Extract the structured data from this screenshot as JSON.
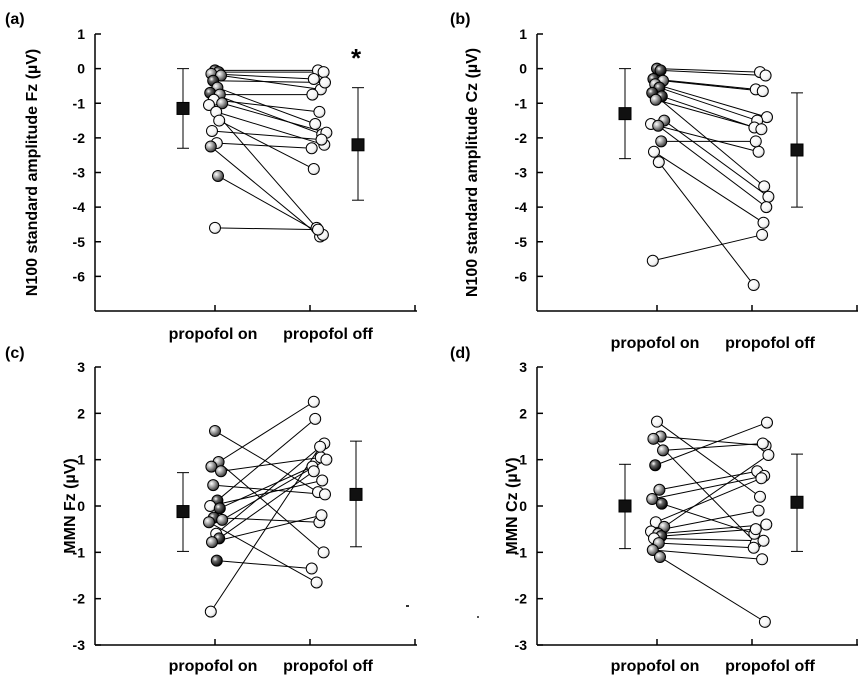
{
  "chart_data": [
    {
      "type": "scatter",
      "panel_label": "(a)",
      "ylabel": "N100 standard amplitude Fz (µV)",
      "ylim": [
        -7,
        1
      ],
      "yticks": [
        1,
        0,
        -1,
        -2,
        -3,
        -4,
        -5,
        -6
      ],
      "categories": [
        "propofol on",
        "propofol off"
      ],
      "significance": "*",
      "summary": {
        "on": {
          "mean": -1.15,
          "upper": 0.0,
          "lower": -2.3
        },
        "off": {
          "mean": -2.2,
          "upper": -0.55,
          "lower": -3.8
        }
      },
      "pairs": [
        {
          "on": -0.05,
          "off": -0.05,
          "shade": "dark"
        },
        {
          "on": -0.1,
          "off": -0.1,
          "shade": "dark"
        },
        {
          "on": -0.15,
          "off": -0.3,
          "shade": "mid"
        },
        {
          "on": -0.2,
          "off": -0.6,
          "shade": "mid"
        },
        {
          "on": -0.35,
          "off": -0.4,
          "shade": "dark"
        },
        {
          "on": -0.55,
          "off": -1.6,
          "shade": "mid"
        },
        {
          "on": -0.7,
          "off": -1.9,
          "shade": "dark"
        },
        {
          "on": -0.75,
          "off": -0.75,
          "shade": "mid"
        },
        {
          "on": -0.9,
          "off": -1.25,
          "shade": "light"
        },
        {
          "on": -1.0,
          "off": -1.85,
          "shade": "mid"
        },
        {
          "on": -1.05,
          "off": -4.6,
          "shade": "light"
        },
        {
          "on": -1.25,
          "off": -2.2,
          "shade": "light"
        },
        {
          "on": -1.5,
          "off": -2.9,
          "shade": "light"
        },
        {
          "on": -1.8,
          "off": -2.05,
          "shade": "light"
        },
        {
          "on": -2.15,
          "off": -2.3,
          "shade": "light"
        },
        {
          "on": -2.25,
          "off": -4.85,
          "shade": "mid"
        },
        {
          "on": -3.1,
          "off": -4.8,
          "shade": "mid"
        },
        {
          "on": -4.6,
          "off": -4.65,
          "shade": "light"
        }
      ]
    },
    {
      "type": "scatter",
      "panel_label": "(b)",
      "ylabel": "N100 standard amplitude Cz (µV)",
      "ylim": [
        -7,
        1
      ],
      "yticks": [
        1,
        0,
        -1,
        -2,
        -3,
        -4,
        -5,
        -6
      ],
      "categories": [
        "propofol on",
        "propofol off"
      ],
      "significance": "",
      "summary": {
        "on": {
          "mean": -1.3,
          "upper": 0.0,
          "lower": -2.6
        },
        "off": {
          "mean": -2.35,
          "upper": -0.7,
          "lower": -4.0
        }
      },
      "pairs": [
        {
          "on": 0.0,
          "off": -0.1,
          "shade": "dark"
        },
        {
          "on": -0.05,
          "off": -0.2,
          "shade": "dark"
        },
        {
          "on": -0.3,
          "off": -0.6,
          "shade": "dark"
        },
        {
          "on": -0.35,
          "off": -0.65,
          "shade": "mid"
        },
        {
          "on": -0.45,
          "off": -1.4,
          "shade": "mid"
        },
        {
          "on": -0.55,
          "off": -1.5,
          "shade": "dark"
        },
        {
          "on": -0.7,
          "off": -3.4,
          "shade": "dark"
        },
        {
          "on": -0.8,
          "off": -1.7,
          "shade": "dark"
        },
        {
          "on": -0.9,
          "off": -1.75,
          "shade": "mid"
        },
        {
          "on": -1.5,
          "off": -3.7,
          "shade": "mid"
        },
        {
          "on": -1.6,
          "off": -2.4,
          "shade": "light"
        },
        {
          "on": -1.65,
          "off": -4.0,
          "shade": "mid"
        },
        {
          "on": -2.1,
          "off": -2.1,
          "shade": "mid"
        },
        {
          "on": -2.4,
          "off": -4.45,
          "shade": "light"
        },
        {
          "on": -2.7,
          "off": -6.25,
          "shade": "light"
        },
        {
          "on": -5.55,
          "off": -4.8,
          "shade": "light"
        }
      ]
    },
    {
      "type": "scatter",
      "panel_label": "(c)",
      "ylabel": "MMN Fz (µV)",
      "ylim": [
        -3,
        3
      ],
      "yticks": [
        3,
        2,
        1,
        0,
        -1,
        -2,
        -3
      ],
      "categories": [
        "propofol on",
        "propofol off"
      ],
      "significance": "",
      "summary": {
        "on": {
          "mean": -0.12,
          "upper": 0.72,
          "lower": -0.98
        },
        "off": {
          "mean": 0.25,
          "upper": 1.4,
          "lower": -0.88
        }
      },
      "pairs": [
        {
          "on": 1.62,
          "off": 0.3,
          "shade": "mid"
        },
        {
          "on": 0.95,
          "off": -1.0,
          "shade": "mid"
        },
        {
          "on": 0.85,
          "off": 2.25,
          "shade": "mid"
        },
        {
          "on": 0.75,
          "off": 1.05,
          "shade": "mid"
        },
        {
          "on": 0.45,
          "off": 0.25,
          "shade": "mid"
        },
        {
          "on": 0.12,
          "off": 1.88,
          "shade": "dark"
        },
        {
          "on": 0.0,
          "off": 0.55,
          "shade": "light"
        },
        {
          "on": -0.05,
          "off": 0.85,
          "shade": "dark"
        },
        {
          "on": -0.25,
          "off": -0.35,
          "shade": "dark"
        },
        {
          "on": -0.3,
          "off": 1.0,
          "shade": "mid"
        },
        {
          "on": -0.35,
          "off": -1.65,
          "shade": "mid"
        },
        {
          "on": -0.6,
          "off": 1.35,
          "shade": "light"
        },
        {
          "on": -0.7,
          "off": 0.75,
          "shade": "dark"
        },
        {
          "on": -0.78,
          "off": -0.2,
          "shade": "mid"
        },
        {
          "on": -1.18,
          "off": -1.35,
          "shade": "dark"
        },
        {
          "on": -2.28,
          "off": 1.28,
          "shade": "light"
        }
      ]
    },
    {
      "type": "scatter",
      "panel_label": "(d)",
      "ylabel": "MMN Cz (µV)",
      "ylim": [
        -3,
        3
      ],
      "yticks": [
        3,
        2,
        1,
        0,
        -1,
        -2,
        -3
      ],
      "categories": [
        "propofol on",
        "propofol off"
      ],
      "significance": "",
      "summary": {
        "on": {
          "mean": 0.0,
          "upper": 0.9,
          "lower": -0.92
        },
        "off": {
          "mean": 0.08,
          "upper": 1.12,
          "lower": -0.98
        }
      },
      "pairs": [
        {
          "on": 1.82,
          "off": 0.2,
          "shade": "light"
        },
        {
          "on": 1.5,
          "off": 1.3,
          "shade": "mid"
        },
        {
          "on": 1.45,
          "off": -0.8,
          "shade": "mid"
        },
        {
          "on": 1.2,
          "off": 1.35,
          "shade": "mid"
        },
        {
          "on": 0.88,
          "off": 1.8,
          "shade": "dark"
        },
        {
          "on": 0.35,
          "off": 0.75,
          "shade": "mid"
        },
        {
          "on": 0.15,
          "off": 0.65,
          "shade": "mid"
        },
        {
          "on": 0.05,
          "off": -0.6,
          "shade": "dark"
        },
        {
          "on": -0.35,
          "off": 0.6,
          "shade": "light"
        },
        {
          "on": -0.45,
          "off": 1.1,
          "shade": "mid"
        },
        {
          "on": -0.55,
          "off": -0.1,
          "shade": "light"
        },
        {
          "on": -0.6,
          "off": -0.4,
          "shade": "mid"
        },
        {
          "on": -0.65,
          "off": -0.5,
          "shade": "dark"
        },
        {
          "on": -0.7,
          "off": -0.75,
          "shade": "light"
        },
        {
          "on": -0.8,
          "off": -0.9,
          "shade": "mid"
        },
        {
          "on": -0.95,
          "off": -1.15,
          "shade": "mid"
        },
        {
          "on": -1.1,
          "off": -2.5,
          "shade": "mid"
        }
      ]
    }
  ]
}
